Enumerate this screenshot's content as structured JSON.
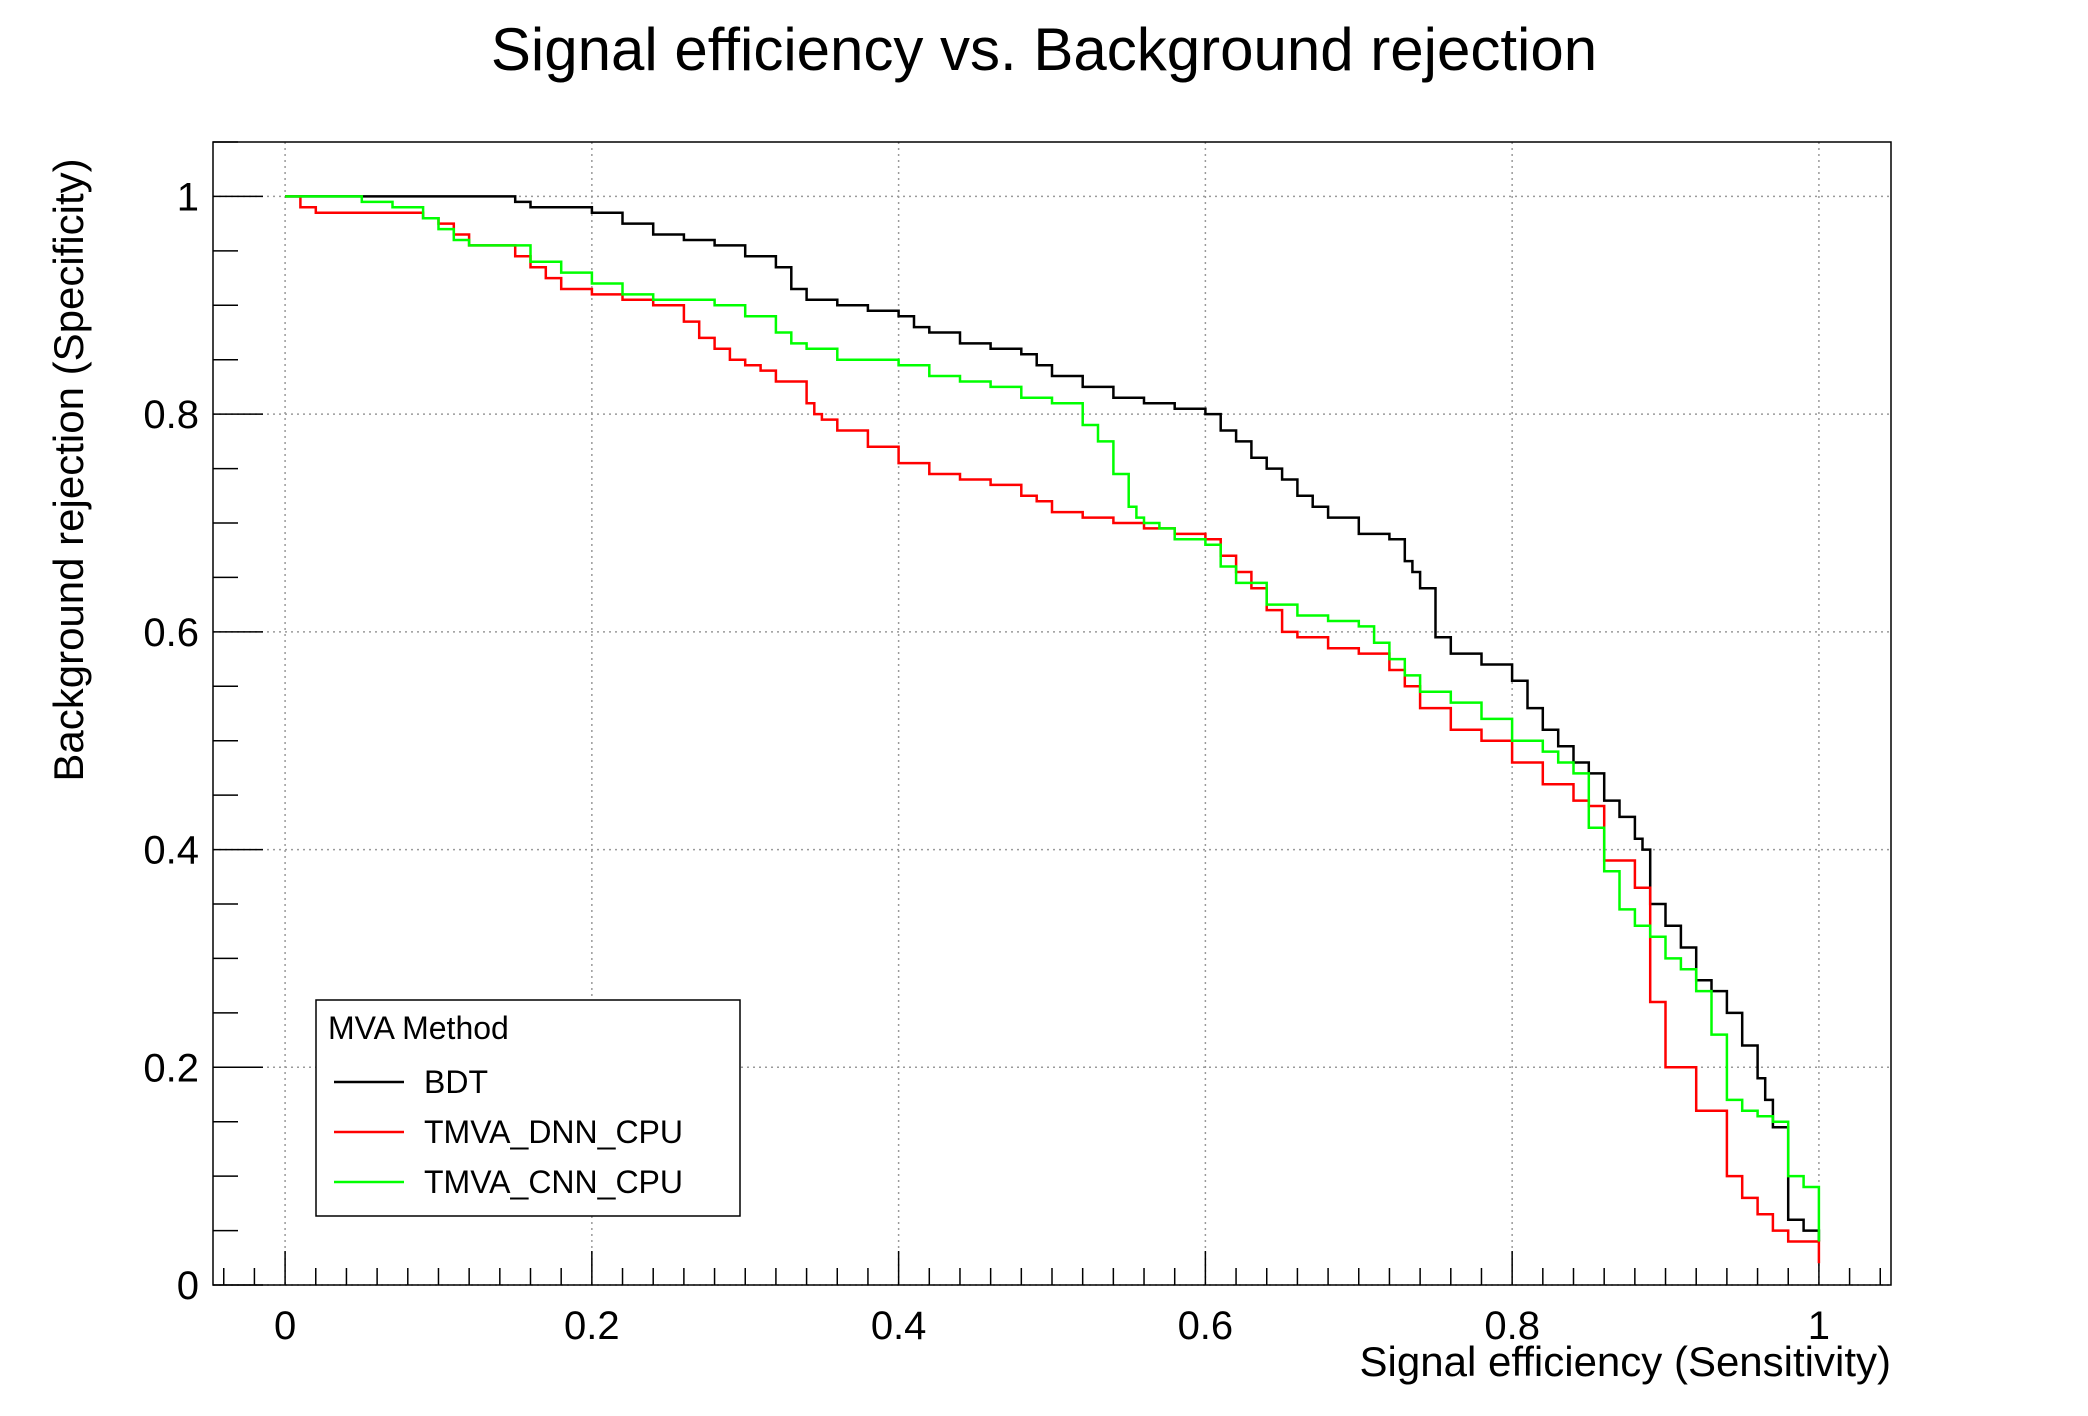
{
  "chart_data": {
    "type": "line",
    "title": "Signal efficiency vs. Background rejection",
    "xlabel": "Signal efficiency (Sensitivity)",
    "ylabel": "Background rejection (Specificity)",
    "xlim": [
      -0.047,
      1.047
    ],
    "ylim": [
      0,
      1.05
    ],
    "xticks": [
      0,
      0.2,
      0.4,
      0.6,
      0.8,
      1
    ],
    "xtick_labels": [
      "0",
      "0.2",
      "0.4",
      "0.6",
      "0.8",
      "1"
    ],
    "yticks": [
      0,
      0.2,
      0.4,
      0.6,
      0.8,
      1
    ],
    "ytick_labels": [
      "0",
      "0.2",
      "0.4",
      "0.6",
      "0.8",
      "1"
    ],
    "grid": true,
    "legend": {
      "title": "MVA Method",
      "position": "bottom-left"
    },
    "series": [
      {
        "name": "BDT",
        "color": "#000000",
        "x": [
          0,
          0.14,
          0.15,
          0.16,
          0.2,
          0.22,
          0.24,
          0.26,
          0.28,
          0.3,
          0.32,
          0.33,
          0.34,
          0.36,
          0.38,
          0.4,
          0.41,
          0.42,
          0.44,
          0.46,
          0.48,
          0.49,
          0.5,
          0.52,
          0.54,
          0.56,
          0.58,
          0.6,
          0.61,
          0.62,
          0.63,
          0.64,
          0.65,
          0.66,
          0.67,
          0.68,
          0.7,
          0.72,
          0.73,
          0.735,
          0.74,
          0.75,
          0.76,
          0.78,
          0.8,
          0.81,
          0.82,
          0.83,
          0.84,
          0.85,
          0.86,
          0.87,
          0.88,
          0.885,
          0.89,
          0.9,
          0.91,
          0.92,
          0.93,
          0.94,
          0.95,
          0.96,
          0.965,
          0.97,
          0.98,
          0.99,
          1
        ],
        "y": [
          1,
          1,
          0.995,
          0.99,
          0.985,
          0.975,
          0.965,
          0.96,
          0.955,
          0.945,
          0.935,
          0.915,
          0.905,
          0.9,
          0.895,
          0.89,
          0.88,
          0.875,
          0.865,
          0.86,
          0.855,
          0.845,
          0.835,
          0.825,
          0.815,
          0.81,
          0.805,
          0.8,
          0.785,
          0.775,
          0.76,
          0.75,
          0.74,
          0.725,
          0.715,
          0.705,
          0.69,
          0.685,
          0.665,
          0.655,
          0.64,
          0.595,
          0.58,
          0.57,
          0.555,
          0.53,
          0.51,
          0.495,
          0.48,
          0.47,
          0.445,
          0.43,
          0.41,
          0.4,
          0.35,
          0.33,
          0.31,
          0.28,
          0.27,
          0.25,
          0.22,
          0.19,
          0.17,
          0.145,
          0.06,
          0.05,
          0.04
        ]
      },
      {
        "name": "TMVA_DNN_CPU",
        "color": "#ff0000",
        "x": [
          0,
          0.01,
          0.02,
          0.09,
          0.1,
          0.11,
          0.12,
          0.13,
          0.15,
          0.16,
          0.17,
          0.18,
          0.2,
          0.22,
          0.24,
          0.26,
          0.27,
          0.28,
          0.29,
          0.3,
          0.31,
          0.32,
          0.34,
          0.345,
          0.35,
          0.36,
          0.38,
          0.4,
          0.42,
          0.44,
          0.46,
          0.48,
          0.49,
          0.5,
          0.52,
          0.54,
          0.56,
          0.58,
          0.6,
          0.61,
          0.62,
          0.63,
          0.64,
          0.65,
          0.66,
          0.68,
          0.7,
          0.72,
          0.73,
          0.74,
          0.76,
          0.78,
          0.8,
          0.82,
          0.84,
          0.85,
          0.86,
          0.88,
          0.89,
          0.9,
          0.92,
          0.94,
          0.95,
          0.96,
          0.97,
          0.98,
          1
        ],
        "y": [
          1,
          0.99,
          0.985,
          0.98,
          0.975,
          0.965,
          0.955,
          0.955,
          0.945,
          0.935,
          0.925,
          0.915,
          0.91,
          0.905,
          0.9,
          0.885,
          0.87,
          0.86,
          0.85,
          0.845,
          0.84,
          0.83,
          0.81,
          0.8,
          0.795,
          0.785,
          0.77,
          0.755,
          0.745,
          0.74,
          0.735,
          0.725,
          0.72,
          0.71,
          0.705,
          0.7,
          0.695,
          0.69,
          0.685,
          0.67,
          0.655,
          0.64,
          0.62,
          0.6,
          0.595,
          0.585,
          0.58,
          0.565,
          0.55,
          0.53,
          0.51,
          0.5,
          0.48,
          0.46,
          0.445,
          0.44,
          0.39,
          0.365,
          0.26,
          0.2,
          0.16,
          0.1,
          0.08,
          0.065,
          0.05,
          0.04,
          0.02
        ]
      },
      {
        "name": "TMVA_CNN_CPU",
        "color": "#00ff00",
        "x": [
          0,
          0.05,
          0.07,
          0.09,
          0.1,
          0.11,
          0.12,
          0.16,
          0.18,
          0.2,
          0.22,
          0.24,
          0.26,
          0.28,
          0.3,
          0.32,
          0.33,
          0.34,
          0.36,
          0.38,
          0.4,
          0.42,
          0.44,
          0.46,
          0.48,
          0.5,
          0.52,
          0.53,
          0.54,
          0.55,
          0.555,
          0.56,
          0.57,
          0.58,
          0.6,
          0.61,
          0.62,
          0.64,
          0.66,
          0.68,
          0.7,
          0.71,
          0.72,
          0.73,
          0.74,
          0.76,
          0.78,
          0.8,
          0.82,
          0.83,
          0.84,
          0.85,
          0.86,
          0.87,
          0.88,
          0.89,
          0.9,
          0.91,
          0.92,
          0.93,
          0.94,
          0.95,
          0.96,
          0.97,
          0.98,
          0.99,
          1
        ],
        "y": [
          1,
          0.995,
          0.99,
          0.98,
          0.97,
          0.96,
          0.955,
          0.94,
          0.93,
          0.92,
          0.91,
          0.905,
          0.905,
          0.9,
          0.89,
          0.875,
          0.865,
          0.86,
          0.85,
          0.85,
          0.845,
          0.835,
          0.83,
          0.825,
          0.815,
          0.81,
          0.79,
          0.775,
          0.745,
          0.715,
          0.705,
          0.7,
          0.695,
          0.685,
          0.68,
          0.66,
          0.645,
          0.625,
          0.615,
          0.61,
          0.605,
          0.59,
          0.575,
          0.56,
          0.545,
          0.535,
          0.52,
          0.5,
          0.49,
          0.48,
          0.47,
          0.42,
          0.38,
          0.345,
          0.33,
          0.32,
          0.3,
          0.29,
          0.27,
          0.23,
          0.17,
          0.16,
          0.155,
          0.15,
          0.1,
          0.09,
          0.04
        ]
      }
    ]
  }
}
